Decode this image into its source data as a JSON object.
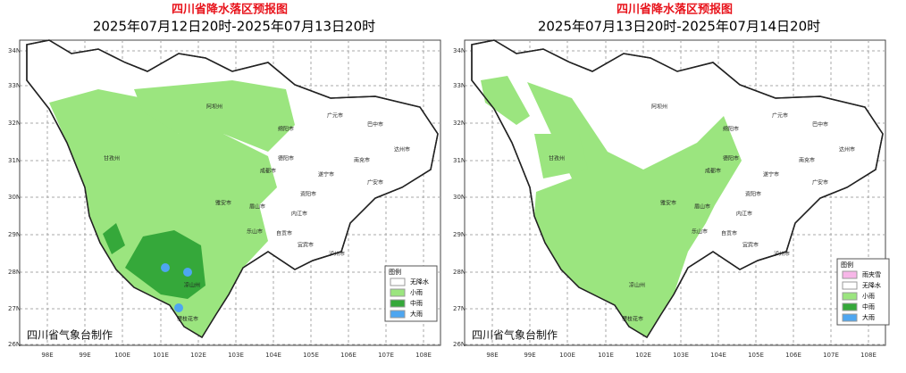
{
  "maps": [
    {
      "title": "四川省降水落区预报图",
      "subtitle": "2025年07月12日20时-2025年07月13日20时",
      "legend": {
        "title": "图例",
        "items": [
          "无降水",
          "小雨",
          "中雨",
          "大雨"
        ]
      },
      "credit": "四川省气象台制作"
    },
    {
      "title": "四川省降水落区预报图",
      "subtitle": "2025年07月13日20时-2025年07月14日20时",
      "legend": {
        "title": "图例",
        "items": [
          "雨夹雪",
          "无降水",
          "小雨",
          "中雨",
          "大雨"
        ]
      },
      "credit": "四川省气象台制作"
    }
  ],
  "lat_labels": [
    "34N",
    "33N",
    "32N",
    "31N",
    "30N",
    "29N",
    "28N",
    "27N",
    "26N"
  ],
  "lon_labels": [
    "98E",
    "99E",
    "100E",
    "101E",
    "102E",
    "103E",
    "104E",
    "105E",
    "106E",
    "107E",
    "108E"
  ],
  "cities": [
    "阿坝州",
    "甘孜州",
    "广元市",
    "巴中市",
    "达州市",
    "绵阳市",
    "南充市",
    "德阳市",
    "成都市",
    "遂宁市",
    "广安市",
    "资阳市",
    "雅安市",
    "眉山市",
    "内江市",
    "乐山市",
    "自贡市",
    "宜宾市",
    "泸州市",
    "凉山州",
    "攀枝花市"
  ]
}
